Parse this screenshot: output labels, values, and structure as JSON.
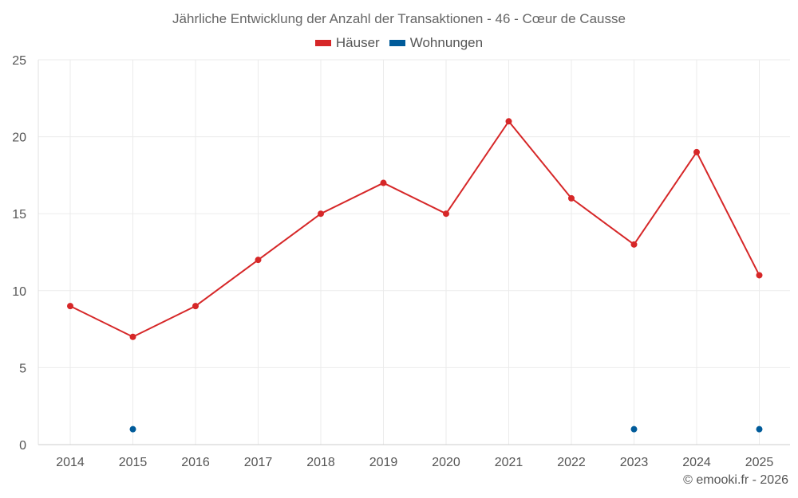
{
  "chart_data": {
    "type": "line",
    "title": "Jährliche Entwicklung der Anzahl der Transaktionen - 46 - Cœur de Causse",
    "categories": [
      "2014",
      "2015",
      "2016",
      "2017",
      "2018",
      "2019",
      "2020",
      "2021",
      "2022",
      "2023",
      "2024",
      "2025"
    ],
    "series": [
      {
        "name": "Häuser",
        "color": "#d62728",
        "values": [
          9,
          7,
          9,
          12,
          15,
          17,
          15,
          21,
          16,
          13,
          19,
          11
        ]
      },
      {
        "name": "Wohnungen",
        "color": "#005b9a",
        "values": [
          null,
          1,
          null,
          null,
          null,
          null,
          null,
          null,
          null,
          1,
          null,
          1
        ]
      }
    ],
    "ylim": [
      0,
      25
    ],
    "yticks": [
      0,
      5,
      10,
      15,
      20,
      25
    ],
    "grid": true,
    "legend_position": "top-center",
    "xlabel": "",
    "ylabel": ""
  },
  "footer": "© emooki.fr - 2026"
}
